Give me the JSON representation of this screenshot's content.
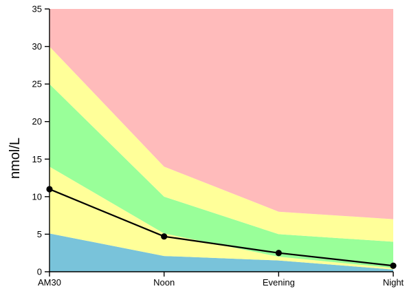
{
  "chart_data": {
    "type": "area",
    "title": "",
    "xlabel": "",
    "ylabel": "nmol/L",
    "ylim": [
      0,
      35
    ],
    "yticks": [
      0,
      5,
      10,
      15,
      20,
      25,
      30,
      35
    ],
    "categories": [
      "AM30",
      "Noon",
      "Evening",
      "Night"
    ],
    "grid": false,
    "bands": [
      {
        "color": "#79c3da",
        "lower": [
          0,
          0,
          0,
          0
        ],
        "upper": [
          5.1,
          2.1,
          1.5,
          0.3
        ]
      },
      {
        "color": "#ffff99",
        "lower": [
          5.1,
          2.1,
          1.5,
          0.3
        ],
        "upper": [
          14,
          5.1,
          2.0,
          0.5
        ]
      },
      {
        "color": "#99ff99",
        "lower": [
          14,
          5.1,
          2.0,
          0.5
        ],
        "upper": [
          25,
          10,
          5,
          4
        ]
      },
      {
        "color": "#ffff99",
        "lower": [
          25,
          10,
          5,
          4
        ],
        "upper": [
          30,
          14,
          8,
          7
        ]
      },
      {
        "color": "#ffbbbb",
        "lower": [
          30,
          14,
          8,
          7
        ],
        "upper": [
          35,
          35,
          35,
          35
        ]
      }
    ],
    "series": [
      {
        "values": [
          11,
          4.7,
          2.5,
          0.8
        ],
        "color": "#000000"
      }
    ]
  }
}
